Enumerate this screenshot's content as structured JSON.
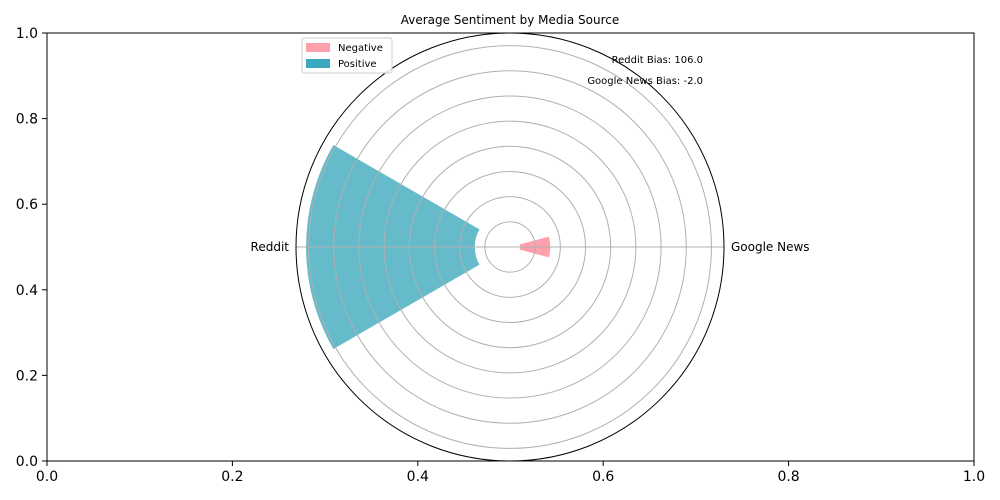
{
  "chart_data": {
    "type": "polar-bar",
    "title": "Average Sentiment by Media Source",
    "cartesian_axes": {
      "xlim": [
        0,
        1
      ],
      "ylim": [
        0,
        1
      ],
      "xticks": [
        "0.0",
        "0.2",
        "0.4",
        "0.6",
        "0.8",
        "1.0"
      ],
      "yticks": [
        "0.0",
        "0.2",
        "0.4",
        "0.6",
        "0.8",
        "1.0"
      ]
    },
    "categories": [
      "Google News",
      "Reddit"
    ],
    "category_angles_deg": [
      0,
      180
    ],
    "radial_max": 8.5,
    "radial_grid": [
      1,
      2,
      3,
      4,
      5,
      6,
      7,
      8
    ],
    "series": [
      {
        "name": "Negative",
        "color": "#ffa1ad",
        "values": [
          {
            "category": "Google News",
            "r_start": 0.4,
            "r_end": 1.6,
            "width_deg": 30
          }
        ]
      },
      {
        "name": "Positive",
        "color": "#65bbca",
        "values": [
          {
            "category": "Reddit",
            "r_start": 1.4,
            "r_end": 8.1,
            "width_deg": 60
          }
        ]
      }
    ],
    "legend": {
      "position": "top-left",
      "items": [
        {
          "label": "Negative",
          "color": "#ffa1ad"
        },
        {
          "label": "Positive",
          "color": "#3aa8bf"
        }
      ]
    },
    "annotations": [
      "Reddit Bias: 106.0",
      "Google News Bias: -2.0"
    ]
  }
}
